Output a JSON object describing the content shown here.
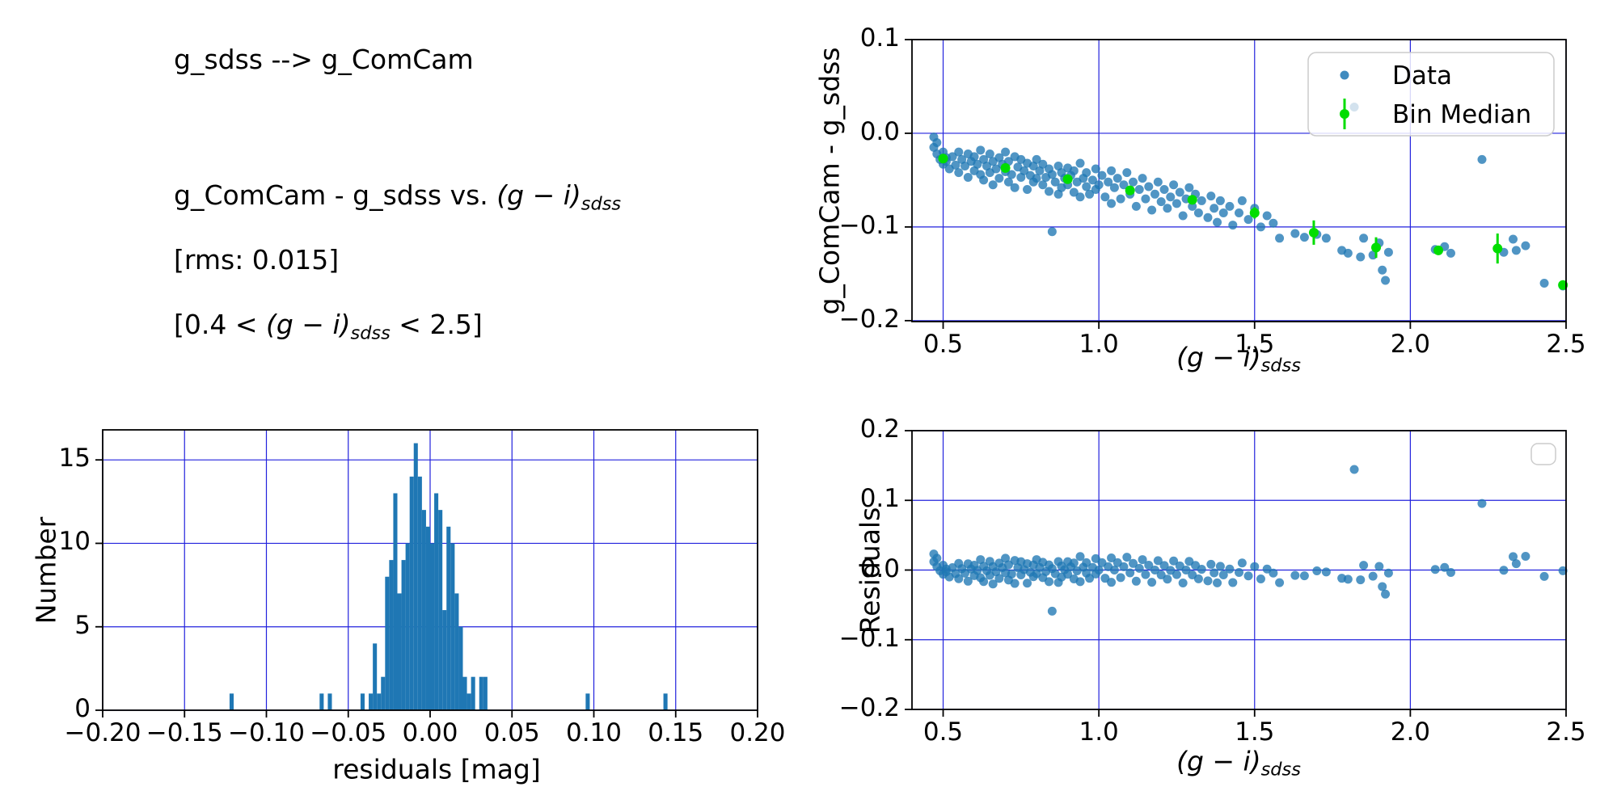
{
  "header": {
    "line1": "g_sdss --> g_ComCam",
    "line2_prefix": "g_ComCam - g_sdss vs. ",
    "line3": "[rms: 0.015]",
    "line4_prefix": "[0.4 < ",
    "line4_suffix": " < 2.5]",
    "gi_math": "(g − i)",
    "gi_sub": "sdss"
  },
  "colors": {
    "scatter": "#1f77b4",
    "median": "#00dd00",
    "grid": "#2222dd",
    "hist": "#1f77b4",
    "spine": "#000000",
    "occluded_point": "#d3e2ee",
    "legend_border": "#cccccc"
  },
  "chart_data": [
    {
      "name": "comparison_scatter",
      "type": "scatter",
      "ylabel": "g_ComCam - g_sdss",
      "xlabel_math": "(g − i)",
      "xlabel_sub": "sdss",
      "xlim": [
        0.4,
        2.5
      ],
      "ylim": [
        -0.201,
        0.1
      ],
      "grid": true,
      "legend_position": "upper right",
      "legend": {
        "entries": [
          "Data",
          "Bin Median"
        ]
      },
      "xtick_values": [
        0.5,
        1.0,
        1.5,
        2.0,
        2.5
      ],
      "xtick_labels": [
        "0.5",
        "1.0",
        "1.5",
        "2.0",
        "2.5"
      ],
      "ytick_values": [
        0.1,
        0.0,
        -0.1,
        -0.2
      ],
      "ytick_labels": [
        "0.1",
        "0.0",
        "−0.1",
        "−0.2"
      ],
      "points": [
        [
          0.47,
          -0.004
        ],
        [
          0.47,
          -0.015
        ],
        [
          0.48,
          -0.01
        ],
        [
          0.48,
          -0.022
        ],
        [
          0.49,
          -0.028
        ],
        [
          0.5,
          -0.033
        ],
        [
          0.5,
          -0.02
        ],
        [
          0.51,
          -0.03
        ],
        [
          0.51,
          -0.026
        ],
        [
          0.52,
          -0.038
        ],
        [
          0.53,
          -0.025
        ],
        [
          0.54,
          -0.034
        ],
        [
          0.55,
          -0.02
        ],
        [
          0.55,
          -0.042
        ],
        [
          0.56,
          -0.028
        ],
        [
          0.57,
          -0.035
        ],
        [
          0.58,
          -0.022
        ],
        [
          0.58,
          -0.047
        ],
        [
          0.59,
          -0.03
        ],
        [
          0.6,
          -0.025
        ],
        [
          0.6,
          -0.04
        ],
        [
          0.61,
          -0.033
        ],
        [
          0.62,
          -0.018
        ],
        [
          0.62,
          -0.044
        ],
        [
          0.63,
          -0.028
        ],
        [
          0.63,
          -0.05
        ],
        [
          0.64,
          -0.035
        ],
        [
          0.65,
          -0.022
        ],
        [
          0.65,
          -0.042
        ],
        [
          0.66,
          -0.03
        ],
        [
          0.66,
          -0.055
        ],
        [
          0.67,
          -0.038
        ],
        [
          0.68,
          -0.026
        ],
        [
          0.68,
          -0.048
        ],
        [
          0.69,
          -0.033
        ],
        [
          0.7,
          -0.02
        ],
        [
          0.7,
          -0.041
        ],
        [
          0.71,
          -0.052
        ],
        [
          0.71,
          -0.03
        ],
        [
          0.72,
          -0.044
        ],
        [
          0.73,
          -0.025
        ],
        [
          0.73,
          -0.058
        ],
        [
          0.74,
          -0.036
        ],
        [
          0.75,
          -0.047
        ],
        [
          0.75,
          -0.028
        ],
        [
          0.76,
          -0.04
        ],
        [
          0.77,
          -0.032
        ],
        [
          0.77,
          -0.06
        ],
        [
          0.78,
          -0.045
        ],
        [
          0.79,
          -0.035
        ],
        [
          0.79,
          -0.052
        ],
        [
          0.8,
          -0.028
        ],
        [
          0.8,
          -0.048
        ],
        [
          0.81,
          -0.04
        ],
        [
          0.82,
          -0.055
        ],
        [
          0.82,
          -0.033
        ],
        [
          0.83,
          -0.047
        ],
        [
          0.84,
          -0.038
        ],
        [
          0.84,
          -0.062
        ],
        [
          0.85,
          -0.105
        ],
        [
          0.85,
          -0.044
        ],
        [
          0.86,
          -0.052
        ],
        [
          0.87,
          -0.035
        ],
        [
          0.87,
          -0.065
        ],
        [
          0.88,
          -0.042
        ],
        [
          0.88,
          -0.058
        ],
        [
          0.89,
          -0.048
        ],
        [
          0.9,
          -0.037
        ],
        [
          0.9,
          -0.055
        ],
        [
          0.91,
          -0.045
        ],
        [
          0.92,
          -0.063
        ],
        [
          0.92,
          -0.04
        ],
        [
          0.93,
          -0.052
        ],
        [
          0.94,
          -0.032
        ],
        [
          0.94,
          -0.068
        ],
        [
          0.95,
          -0.048
        ],
        [
          0.96,
          -0.057
        ],
        [
          0.96,
          -0.042
        ],
        [
          0.97,
          -0.065
        ],
        [
          0.98,
          -0.05
        ],
        [
          0.99,
          -0.06
        ],
        [
          0.99,
          -0.038
        ],
        [
          1.0,
          -0.055
        ],
        [
          1.01,
          -0.045
        ],
        [
          1.02,
          -0.068
        ],
        [
          1.03,
          -0.052
        ],
        [
          1.04,
          -0.04
        ],
        [
          1.04,
          -0.075
        ],
        [
          1.05,
          -0.058
        ],
        [
          1.06,
          -0.048
        ],
        [
          1.07,
          -0.07
        ],
        [
          1.08,
          -0.055
        ],
        [
          1.09,
          -0.042
        ],
        [
          1.1,
          -0.065
        ],
        [
          1.11,
          -0.052
        ],
        [
          1.12,
          -0.078
        ],
        [
          1.13,
          -0.06
        ],
        [
          1.14,
          -0.048
        ],
        [
          1.15,
          -0.07
        ],
        [
          1.16,
          -0.057
        ],
        [
          1.17,
          -0.082
        ],
        [
          1.18,
          -0.065
        ],
        [
          1.19,
          -0.052
        ],
        [
          1.2,
          -0.073
        ],
        [
          1.21,
          -0.06
        ],
        [
          1.22,
          -0.08
        ],
        [
          1.23,
          -0.068
        ],
        [
          1.24,
          -0.055
        ],
        [
          1.25,
          -0.075
        ],
        [
          1.26,
          -0.063
        ],
        [
          1.27,
          -0.088
        ],
        [
          1.28,
          -0.07
        ],
        [
          1.29,
          -0.058
        ],
        [
          1.3,
          -0.078
        ],
        [
          1.31,
          -0.065
        ],
        [
          1.32,
          -0.085
        ],
        [
          1.33,
          -0.072
        ],
        [
          1.35,
          -0.09
        ],
        [
          1.36,
          -0.067
        ],
        [
          1.37,
          -0.08
        ],
        [
          1.38,
          -0.095
        ],
        [
          1.39,
          -0.072
        ],
        [
          1.4,
          -0.085
        ],
        [
          1.42,
          -0.078
        ],
        [
          1.43,
          -0.098
        ],
        [
          1.45,
          -0.085
        ],
        [
          1.46,
          -0.072
        ],
        [
          1.48,
          -0.092
        ],
        [
          1.5,
          -0.08
        ],
        [
          1.52,
          -0.1
        ],
        [
          1.54,
          -0.088
        ],
        [
          1.56,
          -0.096
        ],
        [
          1.58,
          -0.112
        ],
        [
          1.63,
          -0.107
        ],
        [
          1.66,
          -0.111
        ],
        [
          1.7,
          -0.108
        ],
        [
          1.73,
          -0.112
        ],
        [
          1.78,
          -0.125
        ],
        [
          1.8,
          -0.128
        ],
        [
          1.84,
          -0.132
        ],
        [
          1.85,
          -0.112
        ],
        [
          1.88,
          -0.13
        ],
        [
          1.9,
          -0.117
        ],
        [
          1.91,
          -0.146
        ],
        [
          1.92,
          -0.157
        ],
        [
          1.93,
          -0.127
        ],
        [
          2.08,
          -0.124
        ],
        [
          2.11,
          -0.121
        ],
        [
          2.13,
          -0.128
        ],
        [
          2.23,
          -0.028
        ],
        [
          2.3,
          -0.127
        ],
        [
          2.33,
          -0.113
        ],
        [
          2.34,
          -0.125
        ],
        [
          2.37,
          -0.12
        ],
        [
          2.43,
          -0.16
        ],
        [
          2.49,
          -0.163
        ]
      ],
      "occluded_point": [
        1.82,
        0.028
      ],
      "bin_medians": [
        [
          0.5,
          -0.027,
          0.004
        ],
        [
          0.7,
          -0.037,
          0.004
        ],
        [
          0.9,
          -0.049,
          0.004
        ],
        [
          1.1,
          -0.061,
          0.005
        ],
        [
          1.3,
          -0.071,
          0.005
        ],
        [
          1.5,
          -0.085,
          0.006
        ],
        [
          1.69,
          -0.106,
          0.013
        ],
        [
          1.89,
          -0.122,
          0.011
        ],
        [
          2.09,
          -0.125,
          0.004
        ],
        [
          2.28,
          -0.123,
          0.016
        ],
        [
          2.49,
          -0.162,
          0.004
        ]
      ]
    },
    {
      "name": "residual_histogram",
      "type": "bar",
      "xlabel": "residuals [mag]",
      "ylabel": "Number",
      "xlim": [
        -0.2,
        0.2
      ],
      "ylim": [
        0,
        16.8
      ],
      "grid": true,
      "bin_width": 0.0025,
      "xtick_values": [
        -0.2,
        -0.15,
        -0.1,
        -0.05,
        0.0,
        0.05,
        0.1,
        0.15,
        0.2
      ],
      "xtick_labels": [
        "−0.20",
        "−0.15",
        "−0.10",
        "−0.05",
        "0.00",
        "0.05",
        "0.10",
        "0.15",
        "0.20"
      ],
      "ytick_values": [
        0,
        5,
        10,
        15
      ],
      "ytick_labels": [
        "0",
        "5",
        "10",
        "15"
      ],
      "bars": [
        [
          -0.1225,
          1
        ],
        [
          -0.0675,
          1
        ],
        [
          -0.0625,
          1
        ],
        [
          -0.0425,
          1
        ],
        [
          -0.0375,
          1
        ],
        [
          -0.035,
          4
        ],
        [
          -0.0325,
          1
        ],
        [
          -0.03,
          2
        ],
        [
          -0.0275,
          8
        ],
        [
          -0.025,
          9
        ],
        [
          -0.0225,
          13
        ],
        [
          -0.02,
          7
        ],
        [
          -0.0175,
          9
        ],
        [
          -0.015,
          10
        ],
        [
          -0.0125,
          14
        ],
        [
          -0.01,
          16
        ],
        [
          -0.0075,
          14
        ],
        [
          -0.005,
          12
        ],
        [
          -0.0025,
          11
        ],
        [
          0,
          10
        ],
        [
          0.0025,
          13
        ],
        [
          0.005,
          12
        ],
        [
          0.0075,
          6
        ],
        [
          0.01,
          11
        ],
        [
          0.0125,
          10
        ],
        [
          0.015,
          7
        ],
        [
          0.0175,
          5
        ],
        [
          0.02,
          2
        ],
        [
          0.0225,
          1
        ],
        [
          0.025,
          2
        ],
        [
          0.03,
          2
        ],
        [
          0.0325,
          2
        ],
        [
          0.095,
          1
        ],
        [
          0.1425,
          1
        ]
      ]
    },
    {
      "name": "residuals_scatter",
      "type": "scatter",
      "ylabel": "Residuals",
      "xlabel_math": "(g − i)",
      "xlabel_sub": "sdss",
      "xlim": [
        0.4,
        2.5
      ],
      "ylim": [
        -0.2,
        0.2
      ],
      "grid": true,
      "empty_legend": true,
      "points_transform": "comparison_scatter points (incl. occluded point) minus interpolated bin-median trend",
      "outliers": [
        [
          1.82,
          0.144
        ],
        [
          2.23,
          0.096
        ],
        [
          0.85,
          -0.059
        ]
      ],
      "xtick_values": [
        0.5,
        1.0,
        1.5,
        2.0,
        2.5
      ],
      "xtick_labels": [
        "0.5",
        "1.0",
        "1.5",
        "2.0",
        "2.5"
      ],
      "ytick_values": [
        0.2,
        0.1,
        0.0,
        -0.1,
        -0.2
      ],
      "ytick_labels": [
        "0.2",
        "0.1",
        "0.0",
        "−0.1",
        "−0.2"
      ]
    }
  ]
}
